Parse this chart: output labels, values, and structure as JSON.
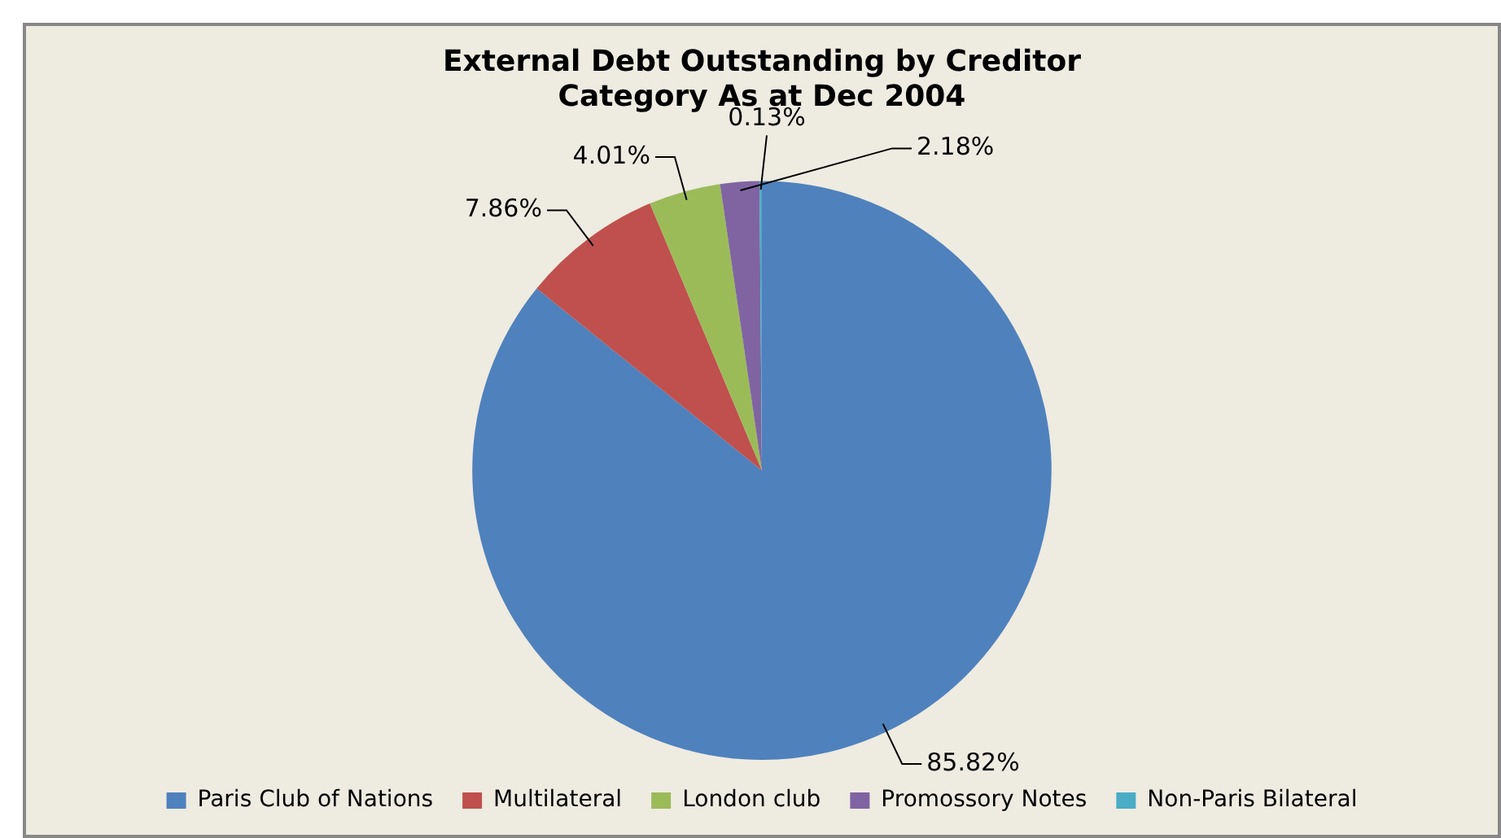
{
  "chart_data": {
    "type": "pie",
    "title": [
      "External Debt Outstanding by Creditor",
      "Category As at Dec 2004"
    ],
    "categories": [
      "Paris Club of Nations",
      "Multilateral",
      "London club",
      "Promossory Notes",
      "Non-Paris Bilateral"
    ],
    "values": [
      85.82,
      7.86,
      4.01,
      2.18,
      0.13
    ],
    "colors": [
      "#4f81bd",
      "#c0504d",
      "#9bbb59",
      "#8064a2",
      "#4bacc6"
    ],
    "value_labels": [
      "85.82%",
      "7.86%",
      "4.01%",
      "2.18%",
      "0.13%"
    ],
    "legend": "bottom"
  }
}
